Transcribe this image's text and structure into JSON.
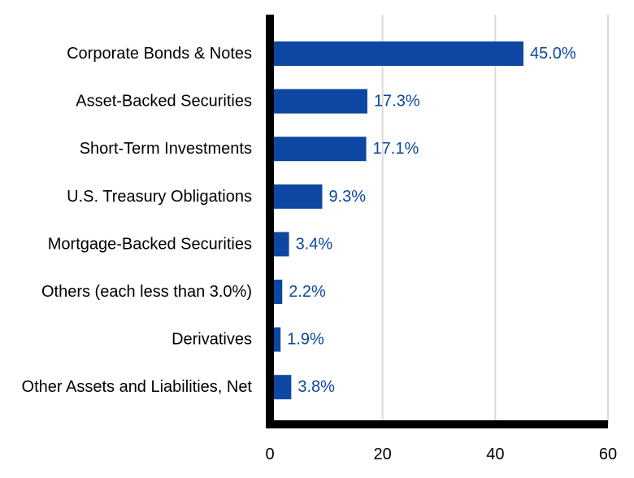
{
  "chart_data": {
    "type": "bar",
    "orientation": "horizontal",
    "categories": [
      "Corporate Bonds & Notes",
      "Asset-Backed Securities",
      "Short-Term Investments",
      "U.S. Treasury Obligations",
      "Mortgage-Backed Securities",
      "Others (each less than 3.0%)",
      "Derivatives",
      "Other Assets and Liabilities, Net"
    ],
    "values": [
      45.0,
      17.3,
      17.1,
      9.3,
      3.4,
      2.2,
      1.9,
      3.8
    ],
    "value_labels": [
      "45.0%",
      "17.3%",
      "17.1%",
      "9.3%",
      "3.4%",
      "2.2%",
      "1.9%",
      "3.8%"
    ],
    "xlim": [
      0,
      60
    ],
    "xticks": [
      0,
      20,
      40,
      60
    ],
    "xtick_labels": [
      "0",
      "20",
      "40",
      "60"
    ],
    "grid": "vertical",
    "legend": "none",
    "colors": {
      "bar": "#0d47a1",
      "value_label": "#0d47a1",
      "axis": "#000000",
      "grid": "#d9d9d9"
    }
  }
}
